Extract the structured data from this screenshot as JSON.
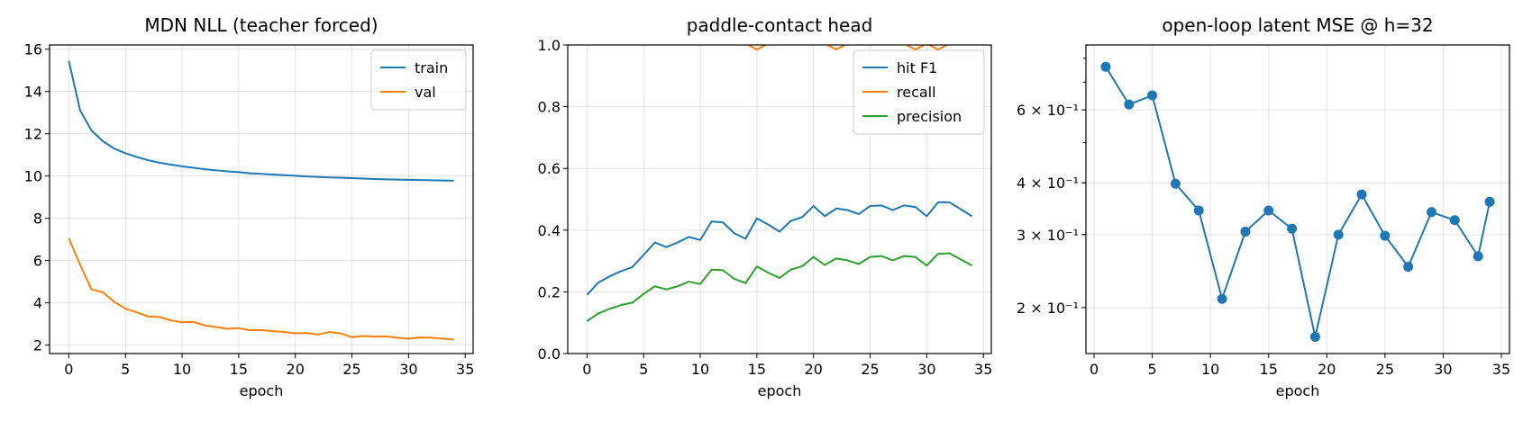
{
  "colors": {
    "blue": "#1f77b4",
    "orange": "#ff7f0e",
    "green": "#2ca02c"
  },
  "chart_data": [
    {
      "type": "line",
      "title": "MDN NLL (teacher forced)",
      "xlabel": "epoch",
      "ylabel": "",
      "xlim": [
        -1.7,
        35.7
      ],
      "ylim": [
        1.6,
        16.2
      ],
      "xticks": [
        0,
        5,
        10,
        15,
        20,
        25,
        30,
        35
      ],
      "yticks": [
        2,
        4,
        6,
        8,
        10,
        12,
        14,
        16
      ],
      "grid": true,
      "legend": "top-right",
      "series": [
        {
          "name": "train",
          "color": "#1f77b4",
          "x": [
            0,
            1,
            2,
            3,
            4,
            5,
            6,
            7,
            8,
            9,
            10,
            11,
            12,
            13,
            14,
            15,
            16,
            17,
            18,
            19,
            20,
            21,
            22,
            23,
            24,
            25,
            26,
            27,
            28,
            29,
            30,
            31,
            32,
            33,
            34
          ],
          "y": [
            15.45,
            13.1,
            12.15,
            11.65,
            11.3,
            11.08,
            10.9,
            10.75,
            10.63,
            10.54,
            10.46,
            10.39,
            10.32,
            10.27,
            10.22,
            10.18,
            10.13,
            10.1,
            10.07,
            10.04,
            10.01,
            9.98,
            9.96,
            9.93,
            9.92,
            9.9,
            9.88,
            9.86,
            9.84,
            9.83,
            9.82,
            9.81,
            9.8,
            9.79,
            9.78
          ]
        },
        {
          "name": "val",
          "color": "#ff7f0e",
          "x": [
            0,
            1,
            2,
            3,
            4,
            5,
            6,
            7,
            8,
            9,
            10,
            11,
            12,
            13,
            14,
            15,
            16,
            17,
            18,
            19,
            20,
            21,
            22,
            23,
            24,
            25,
            26,
            27,
            28,
            29,
            30,
            31,
            32,
            33,
            34
          ],
          "y": [
            7.05,
            5.8,
            4.63,
            4.5,
            4.05,
            3.72,
            3.55,
            3.35,
            3.33,
            3.17,
            3.08,
            3.1,
            2.93,
            2.85,
            2.77,
            2.8,
            2.7,
            2.71,
            2.66,
            2.62,
            2.56,
            2.57,
            2.5,
            2.62,
            2.55,
            2.37,
            2.43,
            2.4,
            2.41,
            2.35,
            2.3,
            2.36,
            2.35,
            2.3,
            2.26
          ]
        }
      ]
    },
    {
      "type": "line",
      "title": "paddle-contact head",
      "xlabel": "epoch",
      "ylabel": "",
      "xlim": [
        -1.7,
        35.7
      ],
      "ylim": [
        0.0,
        1.0
      ],
      "xticks": [
        0,
        5,
        10,
        15,
        20,
        25,
        30,
        35
      ],
      "yticks": [
        0.0,
        0.2,
        0.4,
        0.6,
        0.8,
        1.0
      ],
      "grid": true,
      "legend": "top-right",
      "series": [
        {
          "name": "hit F1",
          "color": "#1f77b4",
          "x": [
            0,
            1,
            2,
            3,
            4,
            5,
            6,
            7,
            8,
            9,
            10,
            11,
            12,
            13,
            14,
            15,
            16,
            17,
            18,
            19,
            20,
            21,
            22,
            23,
            24,
            25,
            26,
            27,
            28,
            29,
            30,
            31,
            32,
            33,
            34
          ],
          "y": [
            0.19,
            0.23,
            0.25,
            0.267,
            0.28,
            0.32,
            0.36,
            0.345,
            0.36,
            0.378,
            0.368,
            0.428,
            0.425,
            0.39,
            0.372,
            0.438,
            0.418,
            0.395,
            0.43,
            0.442,
            0.478,
            0.445,
            0.47,
            0.465,
            0.452,
            0.478,
            0.48,
            0.465,
            0.48,
            0.475,
            0.445,
            0.49,
            0.49,
            0.468,
            0.445
          ]
        },
        {
          "name": "recall",
          "color": "#ff7f0e",
          "x": [
            13,
            14,
            15,
            16,
            17,
            18,
            19,
            20,
            21,
            22,
            23,
            24,
            25,
            26,
            27,
            28,
            29,
            30,
            31,
            32,
            33,
            34
          ],
          "y": [
            1.05,
            1.005,
            0.985,
            1.005,
            1.03,
            1.03,
            1.03,
            1.03,
            1.005,
            0.985,
            1.005,
            1.03,
            1.03,
            1.03,
            1.03,
            1.005,
            0.985,
            1.005,
            0.985,
            1.005,
            1.03,
            1.03
          ]
        },
        {
          "name": "precision",
          "color": "#2ca02c",
          "x": [
            0,
            1,
            2,
            3,
            4,
            5,
            6,
            7,
            8,
            9,
            10,
            11,
            12,
            13,
            14,
            15,
            16,
            17,
            18,
            19,
            20,
            21,
            22,
            23,
            24,
            25,
            26,
            27,
            28,
            29,
            30,
            31,
            32,
            33,
            34
          ],
          "y": [
            0.105,
            0.13,
            0.145,
            0.157,
            0.165,
            0.193,
            0.218,
            0.208,
            0.218,
            0.233,
            0.225,
            0.272,
            0.27,
            0.242,
            0.228,
            0.282,
            0.262,
            0.245,
            0.272,
            0.283,
            0.313,
            0.287,
            0.308,
            0.302,
            0.29,
            0.313,
            0.316,
            0.302,
            0.316,
            0.313,
            0.285,
            0.323,
            0.325,
            0.305,
            0.285
          ]
        }
      ]
    },
    {
      "type": "line",
      "title": "open-loop latent MSE @ h=32",
      "xlabel": "epoch",
      "ylabel": "",
      "yscale": "log",
      "xlim": [
        -0.7,
        35.7
      ],
      "ylim": [
        0.155,
        0.86
      ],
      "xticks": [
        0,
        5,
        10,
        15,
        20,
        25,
        30,
        35
      ],
      "yticks": [
        0.2,
        0.3,
        0.4,
        0.6
      ],
      "ytick_labels": [
        "2 × 10⁻¹",
        "3 × 10⁻¹",
        "4 × 10⁻¹",
        "6 × 10⁻¹"
      ],
      "grid": true,
      "markers": true,
      "series": [
        {
          "color": "#1f77b4",
          "x": [
            1,
            3,
            5,
            7,
            9,
            11,
            13,
            15,
            17,
            19,
            21,
            23,
            25,
            27,
            29,
            31,
            33,
            34
          ],
          "y": [
            0.762,
            0.618,
            0.65,
            0.398,
            0.343,
            0.21,
            0.305,
            0.343,
            0.31,
            0.17,
            0.3,
            0.375,
            0.298,
            0.251,
            0.34,
            0.325,
            0.266,
            0.36
          ]
        }
      ]
    }
  ]
}
